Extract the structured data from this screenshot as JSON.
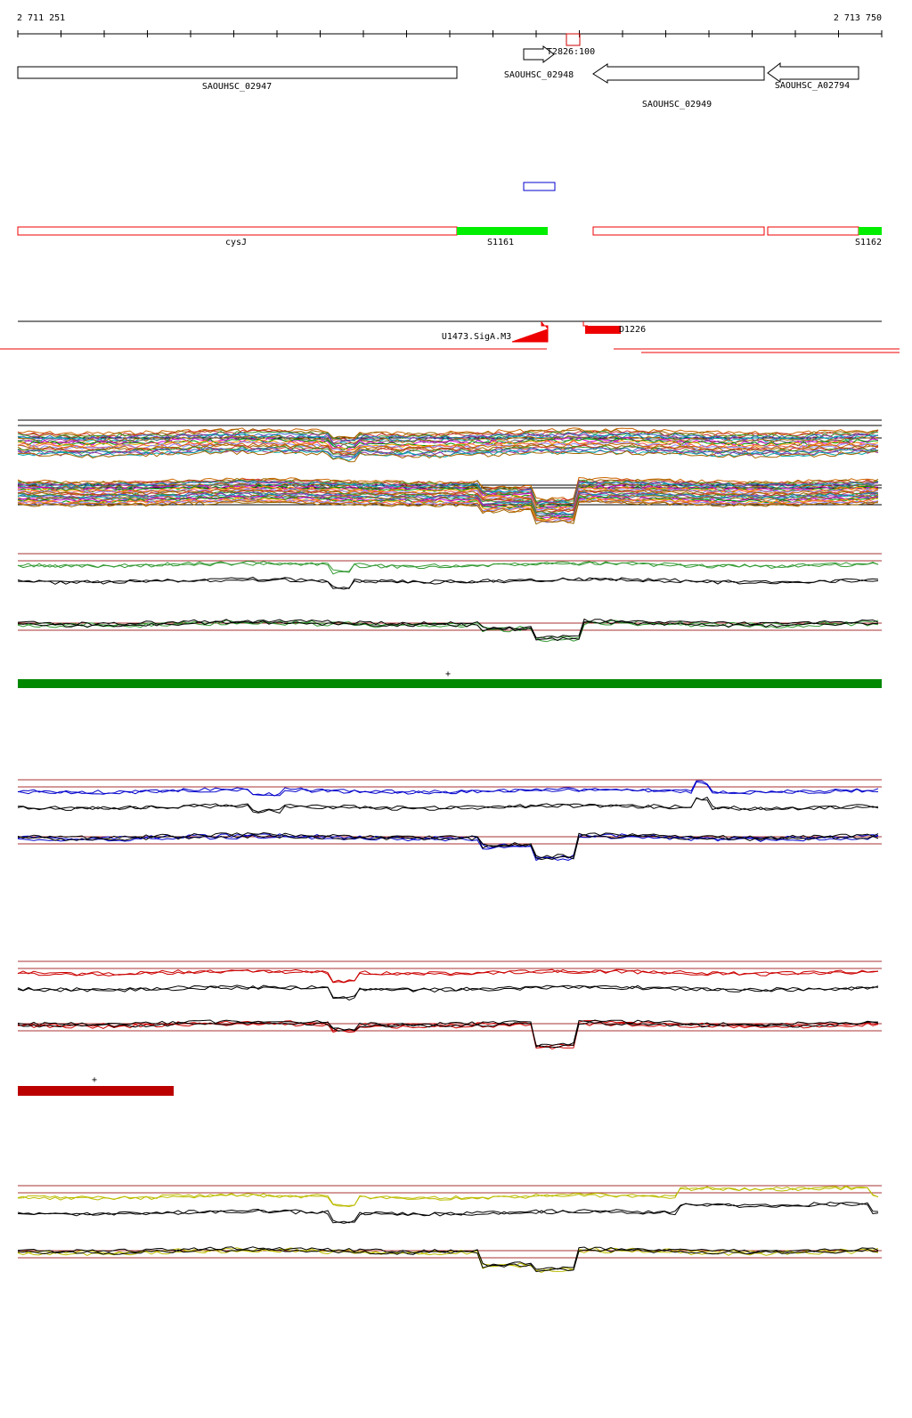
{
  "ruler": {
    "start": "2 711 251",
    "end": "2 713 750"
  },
  "genes": [
    "SAOUHSC_02947",
    "SAOUHSC_02948",
    "SAOUHSC_02949",
    "SAOUHSC_A02794"
  ],
  "terminator": "T2826:100",
  "operons": [
    "cysJ",
    "S1161",
    "S1162"
  ],
  "promoters": [
    "U1473.SigA.M3",
    "D1226"
  ],
  "markers": [
    "+",
    "+"
  ]
}
